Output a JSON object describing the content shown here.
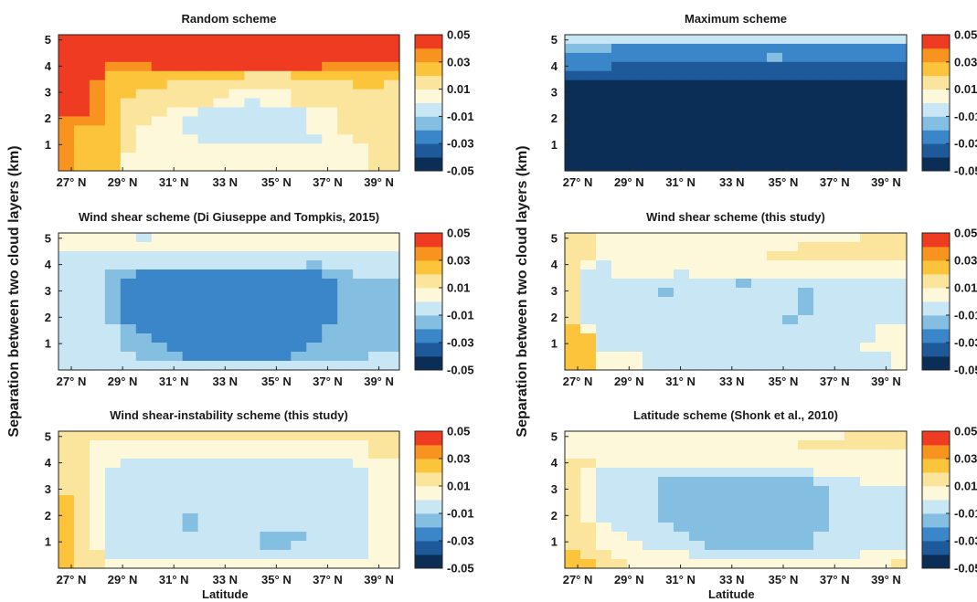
{
  "ylabel": "Separation between two cloud layers (km)",
  "xlabel": "Latitude",
  "colors": {
    "bins": [
      "#0b2e57",
      "#1e5a99",
      "#3a86c8",
      "#84bfe1",
      "#c9e6f4",
      "#fdf8d9",
      "#fbe49c",
      "#fbc43a",
      "#f7931e",
      "#ef3b22"
    ]
  },
  "colorbar": {
    "ticks": [
      "0.05",
      "0.03",
      "0.01",
      "-0.01",
      "-0.03",
      "-0.05"
    ]
  },
  "chart_data": [
    {
      "type": "heatmap",
      "title": "Random scheme",
      "x_ticks": [
        "27° N",
        "29° N",
        "31° N",
        "33 N",
        "35° N",
        "37° N",
        "39° N"
      ],
      "y_ticks": [
        "1",
        "2",
        "3",
        "4",
        "5"
      ],
      "xlim": [
        26.5,
        39.8
      ],
      "ylim": [
        0,
        5.2
      ],
      "clim": [
        -0.05,
        0.05
      ],
      "rows": [
        "9999999999999999999999",
        "9999999999999999999999",
        "9999999999999999999999",
        "9998889999999999988888",
        "9997777777776667777777",
        "9987777666666666666776",
        "9987766666655556666666",
        "9987666666554556666666",
        "9987666554444444556666",
        "8887665544444444556666",
        "8777655544444444556666",
        "8777655554444444455666",
        "8777655555555555555566",
        "8777555555555555555566",
        "8777555555555555555566"
      ]
    },
    {
      "type": "heatmap",
      "title": "Maximum scheme",
      "x_ticks": [
        "27° N",
        "29° N",
        "31° N",
        "33 N",
        "35° N",
        "37° N",
        "39° N"
      ],
      "y_ticks": [
        "1",
        "2",
        "3",
        "4",
        "5"
      ],
      "xlim": [
        26.5,
        39.8
      ],
      "ylim": [
        0,
        5.2
      ],
      "clim": [
        -0.05,
        0.05
      ],
      "rows": [
        "4444444444444444444444",
        "3332222222222222222222",
        "2222222222222322222222",
        "2221111111111111111111",
        "1111111111111111111111",
        "0000000000000000000000",
        "0000000000000000000000",
        "0000000000000000000000",
        "0000000000000000000000",
        "0000000000000000000000",
        "0000000000000000000000",
        "0000000000000000000000",
        "0000000000000000000000",
        "0000000000000000000000",
        "0000000000000000000000"
      ]
    },
    {
      "type": "heatmap",
      "title": "Wind shear scheme (Di Giuseppe and Tompkis, 2015)",
      "x_ticks": [
        "27° N",
        "29° N",
        "31° N",
        "33 N",
        "35° N",
        "37° N",
        "39° N"
      ],
      "y_ticks": [
        "1",
        "2",
        "3",
        "4",
        "5"
      ],
      "xlim": [
        26.5,
        39.8
      ],
      "ylim": [
        0,
        5.2
      ],
      "clim": [
        -0.05,
        0.05
      ],
      "rows": [
        "5555545555555555555555",
        "5555555555555555555555",
        "4444444444444444444444",
        "4444444444444444344444",
        "4443322222222222233444",
        "4443222222222222223333",
        "4443222222222222223333",
        "4443222222222222223333",
        "4443222222222222223333",
        "4443222222222222223333",
        "4444322222222222233333",
        "4444332222222222233333",
        "4444333222222222333333",
        "4444433322222223333344",
        "4444444444444444444444"
      ]
    },
    {
      "type": "heatmap",
      "title": "Wind shear scheme (this study)",
      "x_ticks": [
        "27° N",
        "29° N",
        "31° N",
        "33 N",
        "35° N",
        "37° N",
        "39° N"
      ],
      "y_ticks": [
        "1",
        "2",
        "3",
        "4",
        "5"
      ],
      "xlim": [
        26.5,
        39.8
      ],
      "ylim": [
        0,
        5.2
      ],
      "clim": [
        -0.05,
        0.05
      ],
      "rows": [
        "6655555555555555555666",
        "6655555555555556666666",
        "6655555555555666666666",
        "6545555555555555555555",
        "6445555455555555555555",
        "6444444444434444444444",
        "6444443444444443444444",
        "6444444444444443444444",
        "6444444444444443444444",
        "6444444444444434444444",
        "7544444444444444444455",
        "7744444444444444444455",
        "7744444444444444444555",
        "7755544444444444444445",
        "7755544444444444444445"
      ]
    },
    {
      "type": "heatmap",
      "title": "Wind shear-instability scheme (this study)",
      "x_ticks": [
        "27° N",
        "29° N",
        "31° N",
        "33 N",
        "35° N",
        "37° N",
        "39° N"
      ],
      "y_ticks": [
        "1",
        "2",
        "3",
        "4",
        "5"
      ],
      "xlim": [
        26.5,
        39.8
      ],
      "ylim": [
        0,
        5.2
      ],
      "clim": [
        -0.05,
        0.05
      ],
      "rows": [
        "6666666666666666666666",
        "6655555555555555555566",
        "6655555555555555555566",
        "6655444444444444444555",
        "6654444444444444444455",
        "6654444444444444444455",
        "6654444444444444444455",
        "7654444444444444444455",
        "7654444444444444444455",
        "7654444434444444444455",
        "7654444434444444444455",
        "7654444444444333444455",
        "7654444444444334444455",
        "7664444444444444444455",
        "7665555555555555555555"
      ]
    },
    {
      "type": "heatmap",
      "title": "Latitude scheme (Shonk et al., 2010)",
      "x_ticks": [
        "27° N",
        "29° N",
        "31° N",
        "33 N",
        "35° N",
        "37° N",
        "39° N"
      ],
      "y_ticks": [
        "1",
        "2",
        "3",
        "4",
        "5"
      ],
      "xlim": [
        26.5,
        39.8
      ],
      "ylim": [
        0,
        5.2
      ],
      "clim": [
        -0.05,
        0.05
      ],
      "rows": [
        "5555555555555555556666",
        "5555555555555556666666",
        "5555555555555555555555",
        "6655555555555555555555",
        "6544444444444444555555",
        "6544443333333333444555",
        "6544443333333333344444",
        "6544443333333333344444",
        "6544443333333333344444",
        "6544443333333333344444",
        "6654444333333333344444",
        "6655444433333333444444",
        "6655544443333333444444",
        "7665555544444444444555",
        "7766555555555555555556"
      ]
    }
  ]
}
